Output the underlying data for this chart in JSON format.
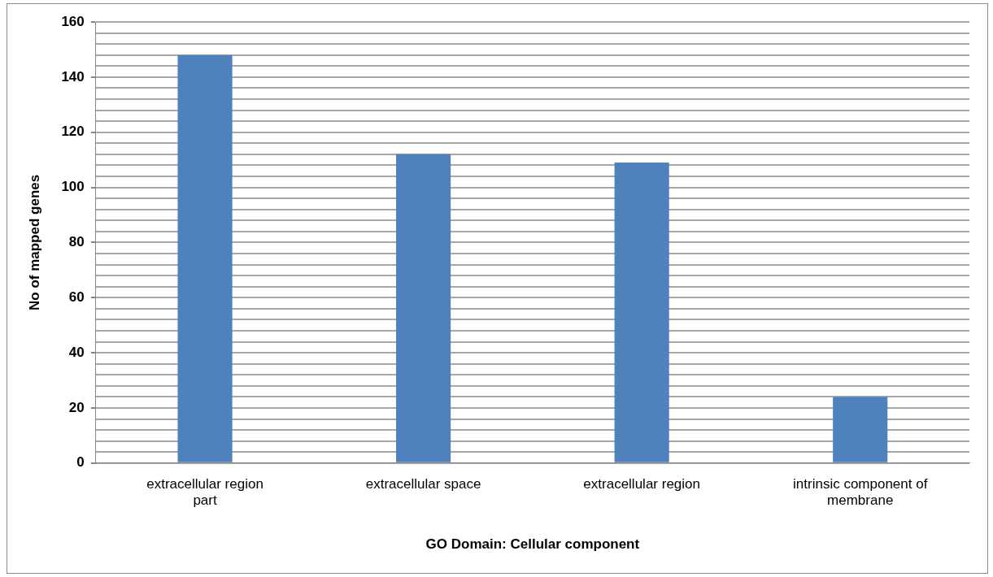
{
  "chart_data": {
    "type": "bar",
    "xlabel": "GO Domain: Cellular component",
    "ylabel": "No of mapped genes",
    "categories": [
      [
        "extracellular region",
        "part"
      ],
      "extracellular space",
      "extracellular region",
      [
        "intrinsic component of",
        "membrane"
      ]
    ],
    "values": [
      148,
      112,
      109,
      24
    ],
    "color": "#4f81bd",
    "ylim": [
      0,
      160
    ],
    "yticks": [
      0,
      {
        "value": 4,
        "label": null
      },
      {
        "value": 8,
        "label": null
      },
      {
        "value": 12,
        "label": null
      },
      {
        "value": 16,
        "label": null
      },
      20,
      {
        "value": 24,
        "label": null
      },
      {
        "value": 28,
        "label": null
      },
      {
        "value": 32,
        "label": null
      },
      {
        "value": 36,
        "label": null
      },
      40,
      {
        "value": 44,
        "label": null
      },
      {
        "value": 48,
        "label": null
      },
      {
        "value": 52,
        "label": null
      },
      {
        "value": 56,
        "label": null
      },
      60,
      {
        "value": 64,
        "label": null
      },
      {
        "value": 68,
        "label": null
      },
      {
        "value": 72,
        "label": null
      },
      {
        "value": 76,
        "label": null
      },
      80,
      {
        "value": 84,
        "label": null
      },
      {
        "value": 88,
        "label": null
      },
      {
        "value": 92,
        "label": null
      },
      {
        "value": 96,
        "label": null
      },
      100,
      {
        "value": 104,
        "label": null
      },
      {
        "value": 108,
        "label": null
      },
      {
        "value": 112,
        "label": null
      },
      {
        "value": 116,
        "label": null
      },
      120,
      {
        "value": 124,
        "label": null
      },
      {
        "value": 128,
        "label": null
      },
      {
        "value": 132,
        "label": null
      },
      {
        "value": 136,
        "label": null
      },
      140,
      {
        "value": 144,
        "label": null
      },
      {
        "value": 148,
        "label": null
      },
      {
        "value": 152,
        "label": null
      },
      {
        "value": 156,
        "label": null
      },
      160
    ],
    "grid": "y"
  }
}
